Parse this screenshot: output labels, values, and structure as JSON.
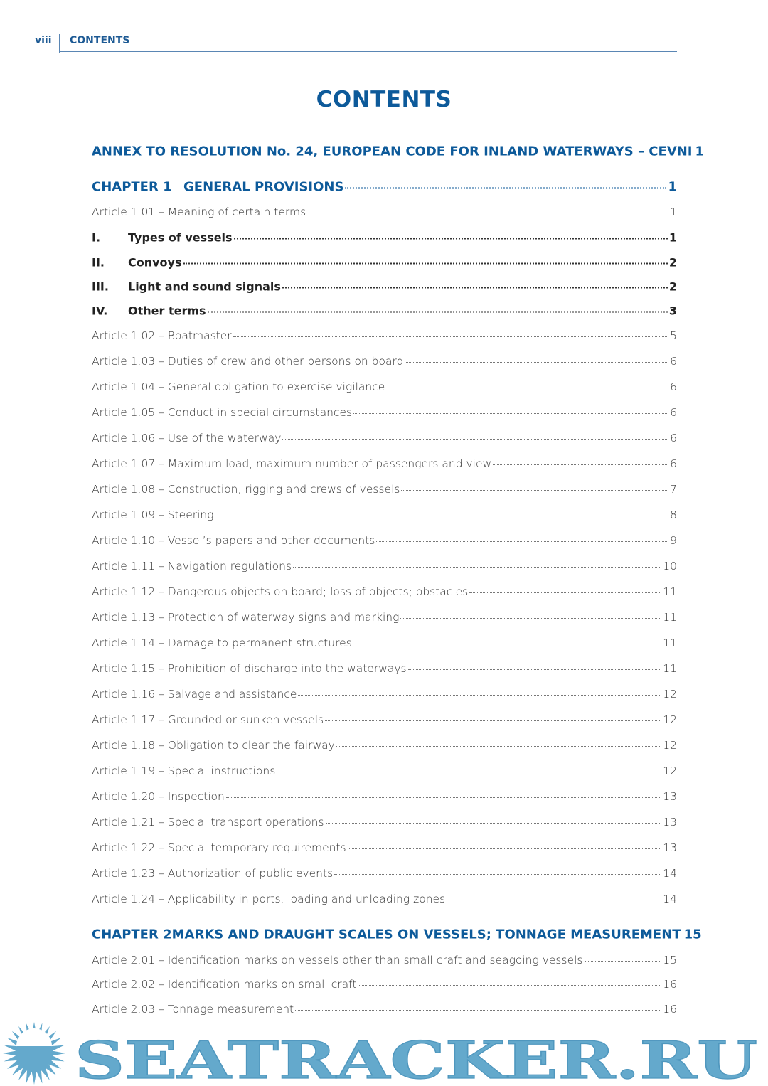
{
  "header": {
    "page_number": "viii",
    "section": "CONTENTS"
  },
  "title": "CONTENTS",
  "entries": [
    {
      "type": "heading",
      "num": "",
      "text": "ANNEX TO RESOLUTION No. 24, EUROPEAN CODE FOR INLAND WATERWAYS – CEVNI",
      "page": "1"
    },
    {
      "type": "heading",
      "num": "CHAPTER 1",
      "text": "GENERAL PROVISIONS",
      "page": "1"
    },
    {
      "type": "article",
      "num": "",
      "text": "Article 1.01 – Meaning of certain terms",
      "page": "1"
    },
    {
      "type": "section",
      "num": "I.",
      "text": "Types of vessels",
      "page": "1"
    },
    {
      "type": "section",
      "num": "II.",
      "text": "Convoys",
      "page": "2"
    },
    {
      "type": "section",
      "num": "III.",
      "text": "Light and sound signals",
      "page": "2"
    },
    {
      "type": "section",
      "num": "IV.",
      "text": "Other terms",
      "page": "3"
    },
    {
      "type": "article",
      "num": "",
      "text": "Article 1.02 – Boatmaster",
      "page": "5"
    },
    {
      "type": "article",
      "num": "",
      "text": "Article 1.03 – Duties of crew and other persons on board",
      "page": "6"
    },
    {
      "type": "article",
      "num": "",
      "text": "Article 1.04 – General obligation to exercise vigilance",
      "page": "6"
    },
    {
      "type": "article",
      "num": "",
      "text": "Article 1.05 – Conduct in special circumstances",
      "page": "6"
    },
    {
      "type": "article",
      "num": "",
      "text": "Article 1.06 – Use of the waterway",
      "page": "6"
    },
    {
      "type": "article",
      "num": "",
      "text": "Article 1.07 – Maximum load, maximum number of passengers and view",
      "page": "6"
    },
    {
      "type": "article",
      "num": "",
      "text": "Article 1.08 – Construction, rigging and crews of vessels",
      "page": "7"
    },
    {
      "type": "article",
      "num": "",
      "text": "Article 1.09 – Steering",
      "page": "8"
    },
    {
      "type": "article",
      "num": "",
      "text": "Article 1.10 – Vessel’s papers and other documents",
      "page": "9"
    },
    {
      "type": "article",
      "num": "",
      "text": "Article 1.11 – Navigation regulations",
      "page": "10"
    },
    {
      "type": "article",
      "num": "",
      "text": "Article 1.12 – Dangerous objects on board; loss of objects; obstacles",
      "page": "11"
    },
    {
      "type": "article",
      "num": "",
      "text": "Article 1.13 – Protection of waterway signs and marking",
      "page": "11"
    },
    {
      "type": "article",
      "num": "",
      "text": "Article 1.14 – Damage to permanent structures",
      "page": "11"
    },
    {
      "type": "article",
      "num": "",
      "text": "Article 1.15 – Prohibition of discharge into the waterways",
      "page": "11"
    },
    {
      "type": "article",
      "num": "",
      "text": "Article 1.16 – Salvage and assistance",
      "page": "12"
    },
    {
      "type": "article",
      "num": "",
      "text": "Article 1.17 – Grounded or sunken vessels",
      "page": "12"
    },
    {
      "type": "article",
      "num": "",
      "text": "Article 1.18 – Obligation to clear the fairway",
      "page": "12"
    },
    {
      "type": "article",
      "num": "",
      "text": "Article 1.19 – Special instructions",
      "page": "12"
    },
    {
      "type": "article",
      "num": "",
      "text": "Article 1.20 – Inspection",
      "page": "13"
    },
    {
      "type": "article",
      "num": "",
      "text": "Article 1.21 – Special transport operations",
      "page": "13"
    },
    {
      "type": "article",
      "num": "",
      "text": "Article 1.22 – Special temporary requirements",
      "page": "13"
    },
    {
      "type": "article",
      "num": "",
      "text": "Article 1.23 – Authorization of public events",
      "page": "14"
    },
    {
      "type": "article",
      "num": "",
      "text": "Article 1.24 – Applicability in ports, loading and unloading zones",
      "page": "14"
    },
    {
      "type": "heading",
      "num": "CHAPTER 2",
      "text": "MARKS AND DRAUGHT SCALES ON VESSELS; TONNAGE MEASUREMENT",
      "page": "15"
    },
    {
      "type": "article",
      "num": "",
      "text": "Article 2.01 – Identification marks on vessels other than small craft and seagoing vessels",
      "page": "15"
    },
    {
      "type": "article",
      "num": "",
      "text": "Article 2.02 – Identification marks on small craft",
      "page": "16"
    },
    {
      "type": "article",
      "num": "",
      "text": "Article 2.03 – Tonnage measurement",
      "page": "16"
    }
  ],
  "watermark": {
    "text": "SEATRACKER.RU",
    "color": "#64a9cc"
  },
  "colors": {
    "heading": "#0d5a9a",
    "text": "#333333"
  }
}
